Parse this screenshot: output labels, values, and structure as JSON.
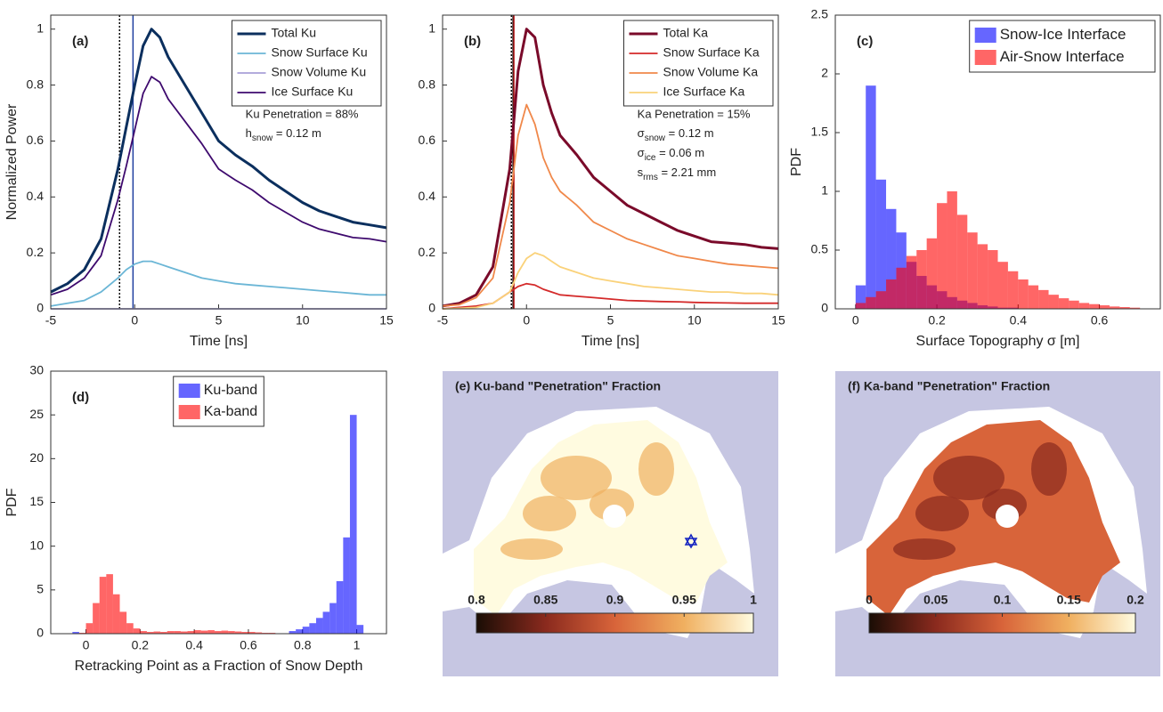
{
  "chart_data": [
    {
      "type": "line",
      "panel_label": "(a)",
      "xlabel": "Time [ns]",
      "ylabel": "Normalized Power",
      "xlim": [
        -5,
        15
      ],
      "xticks": [
        -5,
        0,
        5,
        10,
        15
      ],
      "ylim": [
        0,
        1.05
      ],
      "yticks": [
        0,
        0.2,
        0.4,
        0.6,
        0.8,
        1
      ],
      "legend": "upper right",
      "x": [
        -5,
        -4,
        -3,
        -2,
        -1,
        -0.5,
        0,
        0.5,
        1,
        1.5,
        2,
        3,
        4,
        5,
        6,
        7,
        8,
        9,
        10,
        11,
        12,
        13,
        14,
        15
      ],
      "series": [
        {
          "name": "Total Ku",
          "color": "#0b2f5e",
          "width": 3,
          "values": [
            0.06,
            0.09,
            0.14,
            0.25,
            0.5,
            0.65,
            0.8,
            0.94,
            1.0,
            0.97,
            0.9,
            0.8,
            0.7,
            0.6,
            0.55,
            0.51,
            0.46,
            0.42,
            0.38,
            0.35,
            0.33,
            0.31,
            0.3,
            0.29
          ]
        },
        {
          "name": "Snow Surface Ku",
          "color": "#6bb6d6",
          "width": 1.8,
          "values": [
            0.01,
            0.02,
            0.03,
            0.06,
            0.11,
            0.14,
            0.16,
            0.17,
            0.17,
            0.16,
            0.15,
            0.13,
            0.11,
            0.1,
            0.09,
            0.085,
            0.08,
            0.075,
            0.07,
            0.065,
            0.06,
            0.055,
            0.05,
            0.05
          ]
        },
        {
          "name": "Snow Volume Ku",
          "color": "#a8a0d8",
          "width": 1.8,
          "values": [
            0,
            0,
            0,
            0,
            0,
            0,
            0,
            0,
            0,
            0,
            0,
            0,
            0,
            0,
            0,
            0,
            0,
            0,
            0,
            0,
            0,
            0,
            0,
            0
          ]
        },
        {
          "name": "Ice Surface Ku",
          "color": "#3e0a6e",
          "width": 1.8,
          "values": [
            0.05,
            0.07,
            0.11,
            0.19,
            0.39,
            0.51,
            0.64,
            0.77,
            0.83,
            0.81,
            0.75,
            0.67,
            0.59,
            0.5,
            0.46,
            0.425,
            0.38,
            0.345,
            0.31,
            0.285,
            0.27,
            0.255,
            0.25,
            0.24
          ]
        }
      ],
      "vlines": [
        {
          "x": -0.9,
          "color": "#000000",
          "style": "dotted"
        },
        {
          "x": -0.1,
          "color": "#1f3fa0",
          "style": "solid"
        }
      ],
      "annotations": [
        {
          "text": "Ku Penetration = 88%"
        },
        {
          "base": "h",
          "sub": "snow",
          "text": " = 0.12 m"
        }
      ]
    },
    {
      "type": "line",
      "panel_label": "(b)",
      "xlabel": "Time [ns]",
      "xlim": [
        -5,
        15
      ],
      "xticks": [
        -5,
        0,
        5,
        10,
        15
      ],
      "ylim": [
        0,
        1.05
      ],
      "yticks": [
        0,
        0.2,
        0.4,
        0.6,
        0.8,
        1
      ],
      "legend": "upper right",
      "x": [
        -5,
        -4,
        -3,
        -2,
        -1,
        -0.5,
        0,
        0.5,
        1,
        1.5,
        2,
        3,
        4,
        5,
        6,
        7,
        8,
        9,
        10,
        11,
        12,
        13,
        14,
        15
      ],
      "series": [
        {
          "name": "Total Ka",
          "color": "#7a0a2a",
          "width": 3,
          "values": [
            0.01,
            0.02,
            0.05,
            0.15,
            0.5,
            0.85,
            1.0,
            0.97,
            0.8,
            0.7,
            0.62,
            0.55,
            0.47,
            0.42,
            0.37,
            0.34,
            0.31,
            0.28,
            0.26,
            0.24,
            0.235,
            0.23,
            0.22,
            0.215
          ]
        },
        {
          "name": "Snow Surface Ka",
          "color": "#d42a2a",
          "width": 1.8,
          "values": [
            0,
            0.005,
            0.01,
            0.02,
            0.06,
            0.08,
            0.09,
            0.085,
            0.07,
            0.06,
            0.05,
            0.045,
            0.04,
            0.035,
            0.03,
            0.028,
            0.026,
            0.025,
            0.023,
            0.022,
            0.021,
            0.02,
            0.02,
            0.02
          ]
        },
        {
          "name": "Snow Volume Ka",
          "color": "#f0884a",
          "width": 1.8,
          "values": [
            0.01,
            0.015,
            0.04,
            0.11,
            0.38,
            0.62,
            0.73,
            0.66,
            0.54,
            0.47,
            0.42,
            0.37,
            0.31,
            0.28,
            0.25,
            0.23,
            0.21,
            0.19,
            0.18,
            0.17,
            0.16,
            0.155,
            0.15,
            0.145
          ]
        },
        {
          "name": "Ice Surface Ka",
          "color": "#fad27a",
          "width": 1.8,
          "values": [
            0,
            0.002,
            0.005,
            0.02,
            0.06,
            0.13,
            0.18,
            0.2,
            0.19,
            0.17,
            0.15,
            0.13,
            0.11,
            0.1,
            0.09,
            0.08,
            0.075,
            0.07,
            0.065,
            0.06,
            0.06,
            0.055,
            0.055,
            0.05
          ]
        }
      ],
      "vlines": [
        {
          "x": -0.9,
          "color": "#000000",
          "style": "dotted"
        },
        {
          "x": -0.8,
          "color": "#000000",
          "style": "solid"
        },
        {
          "x": -0.75,
          "color": "#c02020",
          "style": "solid"
        }
      ],
      "annotations": [
        {
          "text": "Ka Penetration = 15%"
        },
        {
          "base": "σ",
          "sub": "snow",
          "text": " = 0.12 m"
        },
        {
          "base": "σ",
          "sub": "ice",
          "text": " = 0.06 m"
        },
        {
          "base": "s",
          "sub": "rms",
          "text": " = 2.21 mm"
        }
      ]
    },
    {
      "type": "histogram",
      "panel_label": "(c)",
      "xlabel": "Surface Topography σ [m]",
      "ylabel": "PDF",
      "xlim": [
        -0.05,
        0.75
      ],
      "xticks": [
        0,
        0.2,
        0.4,
        0.6
      ],
      "ylim": [
        0,
        2.5
      ],
      "yticks": [
        0,
        0.5,
        1,
        1.5,
        2,
        2.5
      ],
      "legend": "upper right",
      "opacity": 0.6,
      "bins": [
        0,
        0.025,
        0.05,
        0.075,
        0.1,
        0.125,
        0.15,
        0.175,
        0.2,
        0.225,
        0.25,
        0.275,
        0.3,
        0.325,
        0.35,
        0.375,
        0.4,
        0.425,
        0.45,
        0.475,
        0.5,
        0.525,
        0.55,
        0.575,
        0.6,
        0.625,
        0.65,
        0.675,
        0.7
      ],
      "series": [
        {
          "name": "Snow-Ice Interface",
          "color": "#0000ff",
          "values": [
            0.2,
            1.9,
            1.1,
            0.85,
            0.65,
            0.4,
            0.28,
            0.2,
            0.15,
            0.1,
            0.07,
            0.05,
            0.03,
            0.02,
            0.01,
            0.01,
            0,
            0,
            0,
            0,
            0,
            0,
            0,
            0,
            0,
            0,
            0,
            0
          ]
        },
        {
          "name": "Air-Snow Interface",
          "color": "#ff0000",
          "values": [
            0.05,
            0.1,
            0.15,
            0.25,
            0.35,
            0.45,
            0.5,
            0.6,
            0.9,
            1.0,
            0.8,
            0.65,
            0.55,
            0.5,
            0.4,
            0.32,
            0.25,
            0.2,
            0.16,
            0.12,
            0.09,
            0.07,
            0.05,
            0.04,
            0.03,
            0.02,
            0.015,
            0.01
          ]
        }
      ]
    },
    {
      "type": "histogram",
      "panel_label": "(d)",
      "xlabel": "Retracking Point as a Fraction of Snow Depth",
      "ylabel": "PDF",
      "xlim": [
        -0.13,
        1.11
      ],
      "xticks": [
        0,
        0.2,
        0.4,
        0.6,
        0.8,
        1
      ],
      "ylim": [
        0,
        30
      ],
      "yticks": [
        0,
        5,
        10,
        15,
        20,
        25,
        30
      ],
      "legend": "upper center",
      "opacity": 0.6,
      "bins": [
        -0.05,
        -0.025,
        0,
        0.025,
        0.05,
        0.075,
        0.1,
        0.125,
        0.15,
        0.175,
        0.2,
        0.225,
        0.25,
        0.275,
        0.3,
        0.325,
        0.35,
        0.375,
        0.4,
        0.425,
        0.45,
        0.475,
        0.5,
        0.525,
        0.55,
        0.575,
        0.6,
        0.625,
        0.65,
        0.675,
        0.7,
        0.725,
        0.75,
        0.775,
        0.8,
        0.825,
        0.85,
        0.875,
        0.9,
        0.925,
        0.95,
        0.975,
        1,
        1.025,
        1.05
      ],
      "series": [
        {
          "name": "Ku-band",
          "color": "#0000ff",
          "values": [
            0.2,
            0,
            0,
            0,
            0,
            0,
            0,
            0,
            0,
            0,
            0,
            0,
            0,
            0,
            0,
            0,
            0,
            0,
            0,
            0,
            0,
            0,
            0,
            0,
            0,
            0,
            0,
            0,
            0,
            0,
            0,
            0,
            0.3,
            0.5,
            0.8,
            1.2,
            1.8,
            2.5,
            3.5,
            6,
            11,
            25,
            1,
            0
          ]
        },
        {
          "name": "Ka-band",
          "color": "#ff0000",
          "values": [
            0,
            0.1,
            1.2,
            3.5,
            6.5,
            6.8,
            4.5,
            2.5,
            1.2,
            0.6,
            0.3,
            0.2,
            0.25,
            0.2,
            0.3,
            0.3,
            0.25,
            0.3,
            0.4,
            0.35,
            0.4,
            0.3,
            0.35,
            0.3,
            0.25,
            0.2,
            0.2,
            0.15,
            0.1,
            0.1,
            0.05,
            0.05,
            0.05,
            0,
            0,
            0,
            0,
            0,
            0,
            0,
            0,
            0,
            0,
            0
          ]
        }
      ]
    },
    {
      "type": "map",
      "title": "(e) Ku-band \"Penetration\" Fraction",
      "clim": [
        0.8,
        1
      ],
      "cticks": [
        0.8,
        0.85,
        0.9,
        0.95,
        1
      ],
      "colormap": [
        "#1a0d05",
        "#8a2a1e",
        "#d8643a",
        "#f0b060",
        "#fffbe0"
      ]
    },
    {
      "type": "map",
      "title": "(f) Ka-band \"Penetration\" Fraction",
      "clim": [
        0,
        0.2
      ],
      "cticks": [
        0,
        0.05,
        0.1,
        0.15,
        0.2
      ],
      "colormap": [
        "#1a0d05",
        "#8a2a1e",
        "#d8643a",
        "#f0b060",
        "#fffbe0"
      ]
    }
  ]
}
